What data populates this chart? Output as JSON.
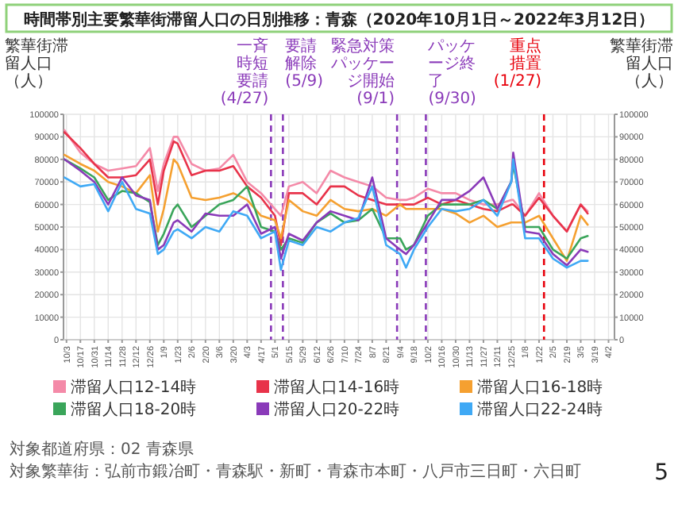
{
  "chart_data": {
    "type": "line",
    "title": "時間帯別主要繁華街滞留人口の日別推移：青森（2020年10月1日～2022年3月12日）",
    "ylabel": "繁華街滞留人口（人）",
    "y2label": "繁華街滞留人口（人）",
    "x": [
      "2020-10-01",
      "2020-10-17",
      "2020-10-31",
      "2020-11-14",
      "2020-11-28",
      "2020-12-12",
      "2020-12-26",
      "2021-01-03",
      "2021-01-09",
      "2021-01-19",
      "2021-01-23",
      "2021-02-06",
      "2021-02-20",
      "2021-03-06",
      "2021-03-20",
      "2021-04-03",
      "2021-04-17",
      "2021-05-01",
      "2021-05-07",
      "2021-05-15",
      "2021-05-29",
      "2021-06-12",
      "2021-06-26",
      "2021-07-10",
      "2021-07-24",
      "2021-08-07",
      "2021-08-21",
      "2021-09-04",
      "2021-09-10",
      "2021-09-18",
      "2021-10-02",
      "2021-10-16",
      "2021-10-30",
      "2021-11-13",
      "2021-11-27",
      "2021-12-11",
      "2021-12-25",
      "2021-12-27",
      "2022-01-08",
      "2022-01-22",
      "2022-02-05",
      "2022-02-19",
      "2022-03-05",
      "2022-03-12"
    ],
    "series": [
      {
        "name": "滞留人口12-14時",
        "color": "#f48aa8",
        "values": [
          93000,
          83000,
          78000,
          75000,
          76000,
          77000,
          85000,
          66000,
          78000,
          90000,
          90000,
          78000,
          75000,
          76000,
          82000,
          70000,
          65000,
          58000,
          55000,
          68000,
          70000,
          65000,
          75000,
          72000,
          70000,
          68000,
          63000,
          62000,
          62000,
          63000,
          67000,
          65000,
          65000,
          62000,
          60000,
          60000,
          62000,
          62000,
          55000,
          65000,
          55000,
          48000,
          60000,
          57000
        ]
      },
      {
        "name": "滞留人口14-16時",
        "color": "#e8334a",
        "values": [
          92000,
          85000,
          78000,
          72000,
          72000,
          73000,
          80000,
          60000,
          75000,
          88000,
          87000,
          73000,
          75000,
          75000,
          77000,
          68000,
          63000,
          55000,
          42000,
          65000,
          65000,
          60000,
          68000,
          68000,
          64000,
          62000,
          60000,
          60000,
          60000,
          60000,
          63000,
          60000,
          62000,
          60000,
          58000,
          57000,
          60000,
          60000,
          55000,
          63000,
          55000,
          48000,
          60000,
          56000
        ]
      },
      {
        "name": "滞留人口16-18時",
        "color": "#f5a030",
        "values": [
          82000,
          78000,
          75000,
          70000,
          68000,
          65000,
          73000,
          48000,
          58000,
          80000,
          78000,
          63000,
          62000,
          63000,
          65000,
          62000,
          55000,
          53000,
          45000,
          62000,
          57000,
          55000,
          62000,
          58000,
          57000,
          58000,
          55000,
          60000,
          58000,
          58000,
          58000,
          58000,
          56000,
          52000,
          55000,
          50000,
          52000,
          52000,
          52000,
          55000,
          45000,
          35000,
          55000,
          51000
        ]
      },
      {
        "name": "滞留人口18-20時",
        "color": "#3aa55a",
        "values": [
          80000,
          76000,
          72000,
          62000,
          66000,
          65000,
          61000,
          42000,
          47000,
          58000,
          60000,
          50000,
          55000,
          60000,
          62000,
          68000,
          50000,
          48000,
          40000,
          45000,
          43000,
          52000,
          56000,
          52000,
          53000,
          58000,
          45000,
          45000,
          40000,
          42000,
          55000,
          60000,
          60000,
          60000,
          62000,
          58000,
          70000,
          78000,
          50000,
          50000,
          40000,
          36000,
          45000,
          46000
        ]
      },
      {
        "name": "滞留人口20-22時",
        "color": "#8a3ab9",
        "values": [
          80000,
          75000,
          70000,
          60000,
          72000,
          64000,
          62000,
          40000,
          42000,
          52000,
          53000,
          48000,
          56000,
          55000,
          55000,
          60000,
          47000,
          50000,
          36000,
          47000,
          44000,
          52000,
          57000,
          55000,
          53000,
          72000,
          45000,
          40000,
          38000,
          42000,
          52000,
          62000,
          62000,
          66000,
          72000,
          58000,
          70000,
          83000,
          48000,
          47000,
          38000,
          33000,
          40000,
          39000
        ]
      },
      {
        "name": "滞留人口22-24時",
        "color": "#3fa9f5",
        "values": [
          72000,
          68000,
          69000,
          57000,
          70000,
          58000,
          56000,
          38000,
          40000,
          48000,
          49000,
          45000,
          50000,
          48000,
          57000,
          55000,
          45000,
          48000,
          31000,
          44000,
          42000,
          50000,
          48000,
          52000,
          54000,
          68000,
          42000,
          38000,
          32000,
          40000,
          50000,
          58000,
          57000,
          58000,
          62000,
          55000,
          70000,
          80000,
          45000,
          45000,
          36000,
          32000,
          35000,
          35000
        ]
      }
    ],
    "xlim": [
      "2020-09-30",
      "2022-04-08"
    ],
    "xticks": [
      {
        "value": "2020-10-03",
        "label": "10/3"
      },
      {
        "value": "2020-10-17",
        "label": "10/17"
      },
      {
        "value": "2020-10-31",
        "label": "10/31"
      },
      {
        "value": "2020-11-14",
        "label": "11/14"
      },
      {
        "value": "2020-11-28",
        "label": "11/28"
      },
      {
        "value": "2020-12-12",
        "label": "12/12"
      },
      {
        "value": "2020-12-26",
        "label": "12/26"
      },
      {
        "value": "2021-01-09",
        "label": "1/9"
      },
      {
        "value": "2021-01-23",
        "label": "1/23"
      },
      {
        "value": "2021-02-06",
        "label": "2/6"
      },
      {
        "value": "2021-02-20",
        "label": "2/20"
      },
      {
        "value": "2021-03-06",
        "label": "3/6"
      },
      {
        "value": "2021-03-20",
        "label": "3/20"
      },
      {
        "value": "2021-04-03",
        "label": "4/3"
      },
      {
        "value": "2021-04-17",
        "label": "4/17"
      },
      {
        "value": "2021-05-01",
        "label": "5/1"
      },
      {
        "value": "2021-05-15",
        "label": "5/15"
      },
      {
        "value": "2021-05-29",
        "label": "5/29"
      },
      {
        "value": "2021-06-12",
        "label": "6/12"
      },
      {
        "value": "2021-06-26",
        "label": "6/26"
      },
      {
        "value": "2021-07-10",
        "label": "7/10"
      },
      {
        "value": "2021-07-24",
        "label": "7/24"
      },
      {
        "value": "2021-08-07",
        "label": "8/7"
      },
      {
        "value": "2021-08-21",
        "label": "8/21"
      },
      {
        "value": "2021-09-04",
        "label": "9/4"
      },
      {
        "value": "2021-09-18",
        "label": "9/18"
      },
      {
        "value": "2021-10-02",
        "label": "10/2"
      },
      {
        "value": "2021-10-16",
        "label": "10/16"
      },
      {
        "value": "2021-10-30",
        "label": "10/30"
      },
      {
        "value": "2021-11-13",
        "label": "11/13"
      },
      {
        "value": "2021-11-27",
        "label": "11/27"
      },
      {
        "value": "2021-12-11",
        "label": "12/11"
      },
      {
        "value": "2021-12-25",
        "label": "12/25"
      },
      {
        "value": "2022-01-08",
        "label": "1/8"
      },
      {
        "value": "2022-01-22",
        "label": "1/22"
      },
      {
        "value": "2022-02-05",
        "label": "2/5"
      },
      {
        "value": "2022-02-19",
        "label": "2/19"
      },
      {
        "value": "2022-03-05",
        "label": "3/5"
      },
      {
        "value": "2022-03-19",
        "label": "3/19"
      },
      {
        "value": "2022-04-02",
        "label": "4/2"
      }
    ],
    "ylim": [
      0,
      100000
    ],
    "yticks": [
      0,
      10000,
      20000,
      30000,
      40000,
      50000,
      60000,
      70000,
      80000,
      90000,
      100000
    ],
    "y2lim": [
      0,
      100000
    ],
    "y2ticks": [
      0,
      10000,
      20000,
      30000,
      40000,
      50000,
      60000,
      70000,
      80000,
      90000,
      100000
    ],
    "ref_lines": [
      {
        "axis": "x",
        "value": "2021-04-27",
        "label": "一斉時短要請(4/27)",
        "color": "#8a3ab9",
        "line_style": "dashed"
      },
      {
        "axis": "x",
        "value": "2021-05-09",
        "label": "要請解除(5/9)",
        "color": "#8a3ab9",
        "line_style": "dashed"
      },
      {
        "axis": "x",
        "value": "2021-09-01",
        "label": "緊急対策パッケージ開始(9/1)",
        "color": "#8a3ab9",
        "line_style": "dashed"
      },
      {
        "axis": "x",
        "value": "2021-09-30",
        "label": "パッケージ終了(9/30)",
        "color": "#8a3ab9",
        "line_style": "dashed"
      },
      {
        "axis": "x",
        "value": "2022-01-27",
        "label": "重点措置(1/27)",
        "color": "#e8000b",
        "line_style": "dashed"
      }
    ],
    "grid": true,
    "legend": "bottom",
    "marker": "none",
    "line_style": "solid",
    "annotations": [
      "対象都道府県：02 青森県",
      "対象繁華街：弘前市鍛冶町・青森駅・新町・青森市本町・八戸市三日町・六日町",
      "5"
    ]
  }
}
